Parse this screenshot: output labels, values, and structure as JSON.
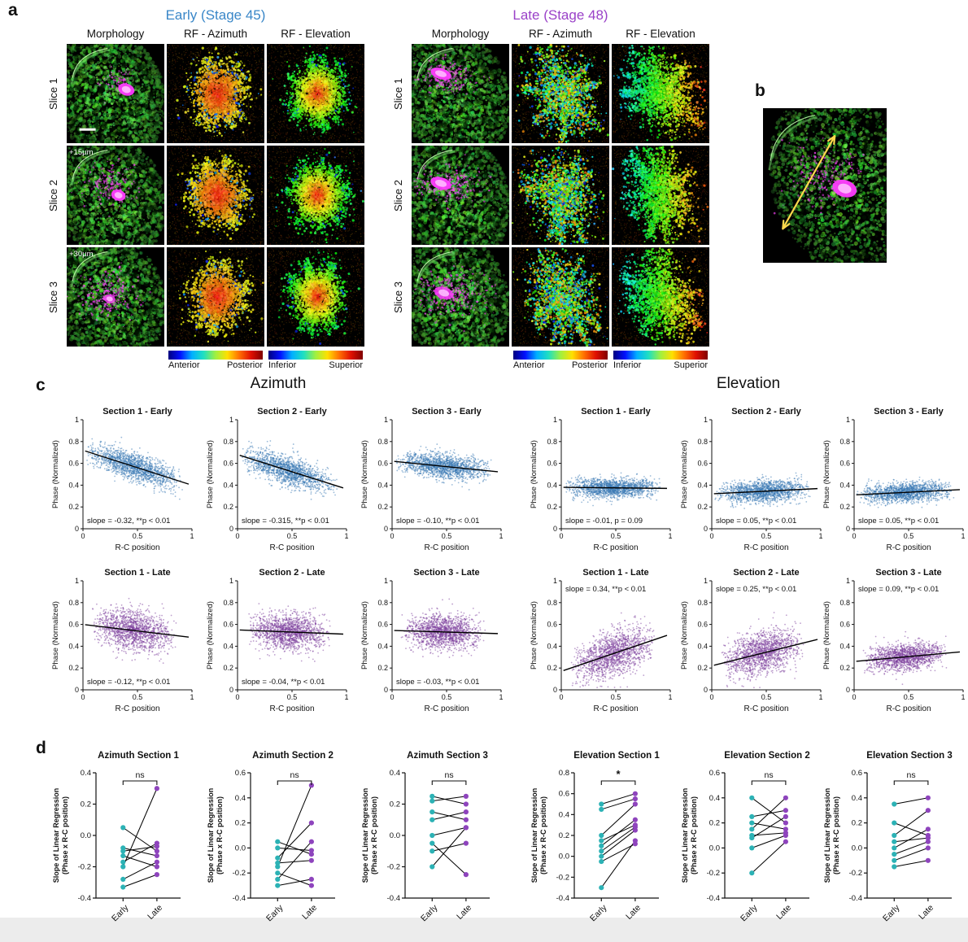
{
  "panel_a": {
    "label": "a",
    "groups": [
      {
        "id": "early",
        "title": "Early (Stage 45)",
        "title_color": "#3a87c8",
        "columns": [
          "Morphology",
          "RF - Azimuth",
          "RF - Elevation"
        ],
        "rows": [
          "Slice 1",
          "Slice 2",
          "Slice 3"
        ],
        "depth_labels": [
          "",
          "+15µm",
          "+30µm"
        ],
        "has_scalebar": true
      },
      {
        "id": "late",
        "title": "Late (Stage 48)",
        "title_color": "#9a41c8",
        "columns": [
          "Morphology",
          "RF - Azimuth",
          "RF - Elevation"
        ],
        "rows": [
          "Slice 1",
          "Slice 2",
          "Slice 3"
        ],
        "depth_labels": [
          "",
          "",
          ""
        ],
        "has_scalebar": false
      }
    ],
    "colorbars": {
      "azimuth": {
        "left": "Anterior",
        "right": "Posterior"
      },
      "elevation": {
        "left": "Inferior",
        "right": "Superior"
      }
    }
  },
  "panel_b": {
    "label": "b"
  },
  "panel_c": {
    "label": "c",
    "group_titles": [
      "Azimuth",
      "Elevation"
    ],
    "early_color": "#3878b4",
    "late_color": "#7d3f9d"
  },
  "panel_d": {
    "label": "d",
    "early_color": "#2cb2b5",
    "late_color": "#8e44bd"
  },
  "chart_data": {
    "scatter_axes": {
      "type": "scatter",
      "xlabel": "R-C position",
      "ylabel": "Phase (Normalized)",
      "xlim": [
        0,
        1
      ],
      "ylim": [
        0,
        1
      ],
      "xticks": [
        0,
        0.5,
        1
      ],
      "yticks": [
        0,
        0.2,
        0.4,
        0.6,
        0.8,
        1
      ]
    },
    "scatter_plots": [
      {
        "measure": "Azimuth",
        "stage": "early",
        "title": "Section 1 - Early",
        "slope": -0.32,
        "intercept": 0.72,
        "spread": 0.062,
        "annotation": "slope = -0.32, **p < 0.01",
        "annotation_pos": "bottom"
      },
      {
        "measure": "Azimuth",
        "stage": "early",
        "title": "Section 2 - Early",
        "slope": -0.315,
        "intercept": 0.68,
        "spread": 0.065,
        "annotation": "slope = -0.315, **p < 0.01",
        "annotation_pos": "bottom"
      },
      {
        "measure": "Azimuth",
        "stage": "early",
        "title": "Section 3 - Early",
        "slope": -0.1,
        "intercept": 0.62,
        "spread": 0.055,
        "annotation": "slope = -0.10, **p < 0.01",
        "annotation_pos": "bottom"
      },
      {
        "measure": "Elevation",
        "stage": "early",
        "title": "Section 1 - Early",
        "slope": -0.01,
        "intercept": 0.38,
        "spread": 0.045,
        "annotation": "slope = -0.01, p = 0.09",
        "annotation_pos": "bottom"
      },
      {
        "measure": "Elevation",
        "stage": "early",
        "title": "Section 2 - Early",
        "slope": 0.05,
        "intercept": 0.32,
        "spread": 0.05,
        "annotation": "slope = 0.05, **p < 0.01",
        "annotation_pos": "bottom"
      },
      {
        "measure": "Elevation",
        "stage": "early",
        "title": "Section 3 - Early",
        "slope": 0.05,
        "intercept": 0.31,
        "spread": 0.045,
        "annotation": "slope = 0.05, **p < 0.01",
        "annotation_pos": "bottom"
      },
      {
        "measure": "Azimuth",
        "stage": "late",
        "title": "Section 1 - Late",
        "slope": -0.12,
        "intercept": 0.6,
        "spread": 0.09,
        "annotation": "slope = -0.12, **p < 0.01",
        "annotation_pos": "bottom"
      },
      {
        "measure": "Azimuth",
        "stage": "late",
        "title": "Section 2 - Late",
        "slope": -0.04,
        "intercept": 0.55,
        "spread": 0.08,
        "annotation": "slope = -0.04, **p < 0.01",
        "annotation_pos": "bottom"
      },
      {
        "measure": "Azimuth",
        "stage": "late",
        "title": "Section 3 - Late",
        "slope": -0.03,
        "intercept": 0.545,
        "spread": 0.08,
        "annotation": "slope = -0.03, **p < 0.01",
        "annotation_pos": "bottom"
      },
      {
        "measure": "Elevation",
        "stage": "late",
        "title": "Section 1 - Late",
        "slope": 0.34,
        "intercept": 0.17,
        "spread": 0.1,
        "annotation": "slope = 0.34, **p < 0.01",
        "annotation_pos": "top"
      },
      {
        "measure": "Elevation",
        "stage": "late",
        "title": "Section 2 - Late",
        "slope": 0.25,
        "intercept": 0.22,
        "spread": 0.095,
        "annotation": "slope = 0.25, **p < 0.01",
        "annotation_pos": "top"
      },
      {
        "measure": "Elevation",
        "stage": "late",
        "title": "Section 3 - Late",
        "slope": 0.09,
        "intercept": 0.26,
        "spread": 0.06,
        "annotation": "slope = 0.09, **p < 0.01",
        "annotation_pos": "top"
      }
    ],
    "paired_axes": {
      "type": "paired-dot",
      "ylabel_line1": "Slope of Linear Regression",
      "ylabel_line2": "(Phase x R-C position)",
      "x_categories": [
        "Early",
        "Late"
      ],
      "ytick_step": 0.2
    },
    "paired_plots": [
      {
        "title": "Azimuth Section 1",
        "sig": "ns",
        "ylim": [
          -0.4,
          0.4
        ],
        "pairs": [
          [
            -0.33,
            -0.25
          ],
          [
            -0.28,
            -0.17
          ],
          [
            -0.2,
            0.3
          ],
          [
            -0.17,
            -0.05
          ],
          [
            -0.13,
            -0.2
          ],
          [
            -0.1,
            -0.07
          ],
          [
            -0.08,
            -0.13
          ],
          [
            0.05,
            -0.1
          ]
        ]
      },
      {
        "title": "Azimuth Section 2",
        "sig": "ns",
        "ylim": [
          -0.4,
          0.6
        ],
        "pairs": [
          [
            -0.3,
            -0.25
          ],
          [
            -0.25,
            0.05
          ],
          [
            -0.2,
            -0.3
          ],
          [
            -0.15,
            0.5
          ],
          [
            -0.12,
            -0.1
          ],
          [
            -0.08,
            0.2
          ],
          [
            0.0,
            -0.02
          ],
          [
            0.05,
            -0.05
          ]
        ]
      },
      {
        "title": "Azimuth Section 3",
        "sig": "ns",
        "ylim": [
          -0.4,
          0.4
        ],
        "pairs": [
          [
            0.25,
            0.2
          ],
          [
            0.22,
            0.25
          ],
          [
            0.15,
            0.1
          ],
          [
            0.1,
            0.15
          ],
          [
            0.0,
            0.05
          ],
          [
            -0.05,
            -0.25
          ],
          [
            -0.1,
            -0.05
          ],
          [
            -0.2,
            0.05
          ]
        ]
      },
      {
        "title": "Elevation Section 1",
        "sig": "*",
        "ylim": [
          -0.4,
          0.8
        ],
        "pairs": [
          [
            0.5,
            0.6
          ],
          [
            0.45,
            0.55
          ],
          [
            0.2,
            0.5
          ],
          [
            0.15,
            0.3
          ],
          [
            0.1,
            0.35
          ],
          [
            0.05,
            0.28
          ],
          [
            0.0,
            0.25
          ],
          [
            -0.05,
            0.12
          ],
          [
            -0.3,
            0.15
          ]
        ]
      },
      {
        "title": "Elevation Section 2",
        "sig": "ns",
        "ylim": [
          -0.4,
          0.6
        ],
        "pairs": [
          [
            0.4,
            0.2
          ],
          [
            0.25,
            0.3
          ],
          [
            0.2,
            0.15
          ],
          [
            0.15,
            0.4
          ],
          [
            0.1,
            0.12
          ],
          [
            0.08,
            0.25
          ],
          [
            0.0,
            0.1
          ],
          [
            -0.2,
            0.05
          ]
        ]
      },
      {
        "title": "Elevation Section 3",
        "sig": "ns",
        "ylim": [
          -0.4,
          0.6
        ],
        "pairs": [
          [
            0.35,
            0.4
          ],
          [
            0.2,
            0.1
          ],
          [
            0.1,
            0.3
          ],
          [
            0.05,
            0.08
          ],
          [
            0.0,
            0.15
          ],
          [
            -0.05,
            0.05
          ],
          [
            -0.1,
            0.0
          ],
          [
            -0.15,
            -0.1
          ]
        ]
      }
    ]
  }
}
